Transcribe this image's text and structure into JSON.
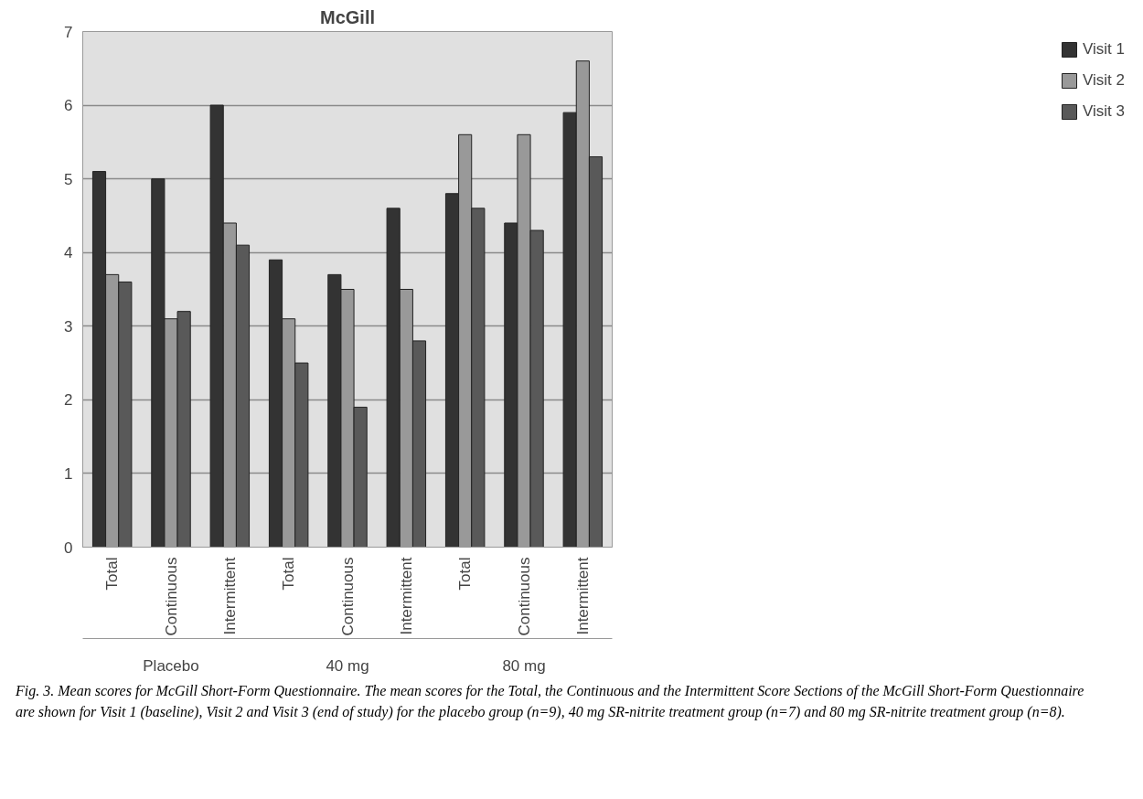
{
  "chart_data": {
    "type": "bar",
    "title": "McGill",
    "categories": [
      "Total",
      "Continuous",
      "Intermittent",
      "Total",
      "Continuous",
      "Intermittent",
      "Total",
      "Continuous",
      "Intermittent"
    ],
    "series": [
      {
        "name": "Visit 1",
        "color": "#333333",
        "values": [
          5.1,
          5.0,
          6.0,
          3.9,
          3.7,
          4.6,
          4.8,
          4.4,
          5.9
        ]
      },
      {
        "name": "Visit 2",
        "color": "#999999",
        "values": [
          3.7,
          3.1,
          4.4,
          3.1,
          3.5,
          3.5,
          5.6,
          5.6,
          6.6
        ]
      },
      {
        "name": "Visit 3",
        "color": "#595959",
        "values": [
          3.6,
          3.2,
          4.1,
          2.5,
          1.9,
          2.8,
          4.6,
          4.3,
          5.3
        ]
      }
    ],
    "ylim": [
      0,
      7
    ],
    "yticks": [
      0,
      1,
      2,
      3,
      4,
      5,
      6,
      7
    ],
    "grid": "y",
    "legend": "right",
    "annotations": [
      "Placebo",
      "40 mg",
      "80 mg",
      "Fig. 3. Mean scores for McGill Short-Form Questionnaire. The mean scores for the Total, the Continuous and the Intermittent Score Sections of the McGill Short-Form Questionnaire are shown for Visit 1 (baseline), Visit 2 and Visit 3 (end of study) for the placebo group (n=9), 40 mg SR-nitrite treatment group (n=7) and 80 mg SR-nitrite treatment group (n=8)."
    ]
  }
}
